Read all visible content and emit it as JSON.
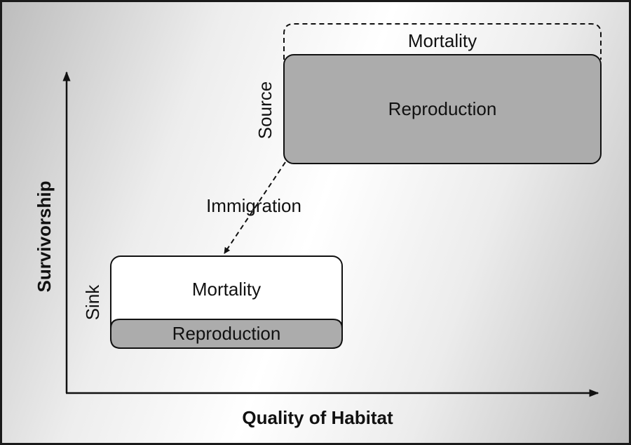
{
  "diagram": {
    "x_axis_title": "Quality of Habitat",
    "y_axis_title": "Survivorship",
    "source": {
      "side_label": "Source",
      "mortality_label": "Mortality",
      "reproduction_label": "Reproduction"
    },
    "sink": {
      "side_label": "Sink",
      "mortality_label": "Mortality",
      "reproduction_label": "Reproduction"
    },
    "flow_label": "Immigration"
  },
  "colors": {
    "reproduction_fill": "#acacac",
    "mortality_fill": "#ffffff",
    "stroke": "#111111"
  }
}
